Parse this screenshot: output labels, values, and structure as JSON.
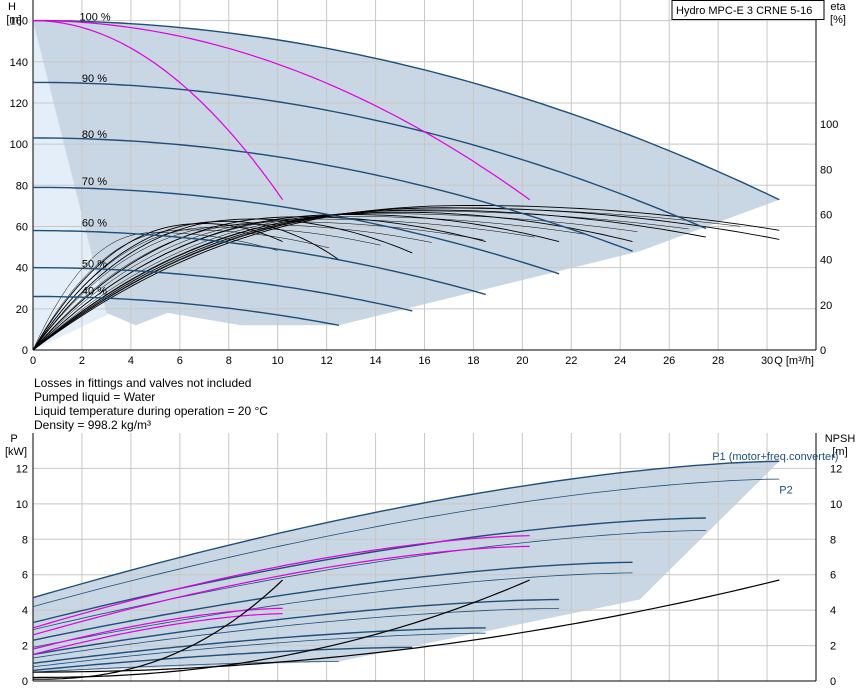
{
  "chart_data": [
    {
      "type": "line",
      "title": "Hydro MPC-E 3 CRNE 5-16",
      "xlabel": "Q [m³/h]",
      "ylabel_left": [
        "H",
        "[m]"
      ],
      "ylabel_right": [
        "eta",
        "[%]"
      ],
      "xlim": [
        0,
        32
      ],
      "ylim_left": [
        0,
        170
      ],
      "ylim_right": [
        0,
        155
      ],
      "x_ticks": [
        0,
        2,
        4,
        6,
        8,
        10,
        12,
        14,
        16,
        18,
        20,
        22,
        24,
        26,
        28,
        30
      ],
      "y_ticks_left": [
        0,
        20,
        40,
        60,
        80,
        100,
        120,
        140,
        160
      ],
      "y_ticks_right": [
        0,
        20,
        40,
        60,
        80,
        100
      ],
      "grid": true,
      "speed_labels": [
        {
          "label": "100 %",
          "q": 1.0,
          "h": 162
        },
        {
          "label": "90 %",
          "q": 1.1,
          "h": 132
        },
        {
          "label": "80 %",
          "q": 1.1,
          "h": 105
        },
        {
          "label": "70 %",
          "q": 1.1,
          "h": 82
        },
        {
          "label": "60 %",
          "q": 1.1,
          "h": 62
        },
        {
          "label": "50 %",
          "q": 1.1,
          "h": 42
        },
        {
          "label": "40 %",
          "q": 1.1,
          "h": 29
        }
      ],
      "head_curves": [
        {
          "h0": 160,
          "qmax": 30.5,
          "hend": 73
        },
        {
          "h0": 130,
          "qmax": 27.5,
          "hend": 59
        },
        {
          "h0": 103,
          "qmax": 24.5,
          "hend": 48
        },
        {
          "h0": 79,
          "qmax": 21.5,
          "hend": 37
        },
        {
          "h0": 58,
          "qmax": 18.5,
          "hend": 27
        },
        {
          "h0": 40,
          "qmax": 15.5,
          "hend": 19
        },
        {
          "h0": 26,
          "qmax": 12.5,
          "hend": 12
        }
      ],
      "system_curves": [
        {
          "h0": 160,
          "qmax": 10.2,
          "hend": 73,
          "qstart": 3.0
        },
        {
          "h0": 160,
          "qmax": 20.3,
          "hend": 73,
          "qstart": 6.0
        }
      ],
      "efficiency_curves": [
        {
          "peak": 64,
          "qpeak": 18,
          "qmax": 30.5,
          "hend": 53
        },
        {
          "peak": 63,
          "qpeak": 17,
          "qmax": 30.5,
          "hend": 49
        },
        {
          "peak": 62,
          "qpeak": 16,
          "qmax": 27.5,
          "hend": 50
        },
        {
          "peak": 61,
          "qpeak": 15,
          "qmax": 24.5,
          "hend": 48
        },
        {
          "peak": 60,
          "qpeak": 13,
          "qmax": 21.5,
          "hend": 48
        },
        {
          "peak": 59,
          "qpeak": 11,
          "qmax": 18.5,
          "hend": 48
        },
        {
          "peak": 58,
          "qpeak": 9,
          "qmax": 15.5,
          "hend": 43
        },
        {
          "peak": 57,
          "qpeak": 8,
          "qmax": 12.5,
          "hend": 40
        },
        {
          "peak": 56,
          "qpeak": 7,
          "qmax": 10.2,
          "hend": 48
        }
      ]
    },
    {
      "type": "line",
      "xlabel": "Q [m³/h]",
      "ylabel_left": [
        "P",
        "[kW]"
      ],
      "ylabel_right": [
        "NPSH",
        "[m]"
      ],
      "xlim": [
        0,
        32
      ],
      "ylim_left": [
        0,
        14
      ],
      "ylim_right": [
        0,
        14
      ],
      "y_ticks_left": [
        0,
        2,
        4,
        6,
        8,
        10,
        12
      ],
      "y_ticks_right": [
        0,
        2,
        4,
        6,
        8,
        10,
        12
      ],
      "grid": true,
      "series_labels": [
        {
          "label": "P1 (motor+freq.converter)",
          "q": 27.8,
          "p": 12.7
        },
        {
          "label": "P2",
          "q": 30.5,
          "p": 10.8
        }
      ],
      "power_curves": [
        {
          "p0": 4.7,
          "qmax": 30.5,
          "pend": 12.4
        },
        {
          "p0": 4.2,
          "qmax": 30.5,
          "pend": 11.4
        },
        {
          "p0": 3.3,
          "qmax": 27.5,
          "pend": 9.2
        },
        {
          "p0": 2.9,
          "qmax": 27.5,
          "pend": 8.5
        },
        {
          "p0": 2.3,
          "qmax": 24.5,
          "pend": 6.7
        },
        {
          "p0": 1.9,
          "qmax": 24.5,
          "pend": 6.1
        },
        {
          "p0": 1.5,
          "qmax": 21.5,
          "pend": 4.6
        },
        {
          "p0": 1.3,
          "qmax": 21.5,
          "pend": 4.1
        },
        {
          "p0": 1.0,
          "qmax": 18.5,
          "pend": 3.0
        },
        {
          "p0": 0.8,
          "qmax": 18.5,
          "pend": 2.7
        },
        {
          "p0": 0.6,
          "qmax": 15.5,
          "pend": 1.9
        },
        {
          "p0": 0.5,
          "qmax": 12.5,
          "pend": 1.1
        }
      ],
      "magenta_curves": [
        {
          "p0": 3.0,
          "qmax": 20.3,
          "pend": 8.2
        },
        {
          "p0": 2.6,
          "qmax": 20.3,
          "pend": 7.6
        },
        {
          "p0": 1.8,
          "qmax": 10.2,
          "pend": 4.1
        },
        {
          "p0": 1.5,
          "qmax": 10.2,
          "pend": 3.8
        }
      ],
      "npsh_curves": [
        {
          "n0": 0.5,
          "qmax": 30.5,
          "nend": 5.7,
          "exp": 2.0
        },
        {
          "n0": 0.2,
          "qmax": 20.3,
          "nend": 5.7,
          "exp": 2.2
        },
        {
          "n0": 0.1,
          "qmax": 10.2,
          "nend": 5.7,
          "exp": 2.4
        }
      ]
    }
  ],
  "notes": [
    "Losses in fittings and valves not included",
    "Pumped liquid = Water",
    "Liquid temperature during operation = 20 °C",
    "Density = 998.2 kg/m³"
  ]
}
